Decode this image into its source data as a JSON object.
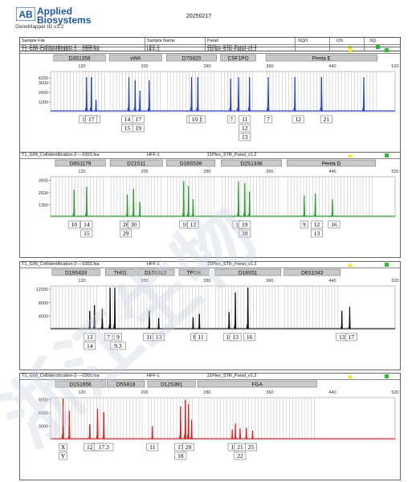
{
  "header": {
    "logo_mark": "AB",
    "brand_line1": "Applied",
    "brand_line2": "Biosystems",
    "software": "GeneMapper ID v3.2",
    "date": "20250217",
    "columns": [
      "Sample File",
      "Sample Name",
      "Panel",
      "SQO",
      "OS",
      "SQ"
    ],
    "row": {
      "sample_file": "T1_G09_CellIdentification-2----0303.fsa",
      "sample_name": "HFF-1",
      "panel": "21Plex_STR_Panel_v1.2"
    },
    "colors": {
      "os_flag": "#ffe100",
      "sq_flag": "#22c42a"
    }
  },
  "watermark": "浙江生物",
  "chart_data": [
    {
      "type": "line",
      "dye": "blue",
      "color": "#1f3fd6",
      "title_row": {
        "sample_file": "T1_G09_CellIdentification-2----0303.fsa",
        "sample_name": "HFF-1",
        "panel": "21Plex_STR_Panel_v1.2"
      },
      "xlim": [
        80,
        520
      ],
      "x_ticks": [
        120,
        200,
        280,
        360,
        440,
        520
      ],
      "ylim": [
        0,
        5000
      ],
      "y_ticks": [
        1200,
        2400,
        3600,
        4200
      ],
      "loci": [
        {
          "name": "D3S1358",
          "start": 84,
          "end": 150
        },
        {
          "name": "vWA",
          "start": 155,
          "end": 222
        },
        {
          "name": "D7S820",
          "start": 228,
          "end": 292
        },
        {
          "name": "CSF1PO",
          "start": 297,
          "end": 342
        },
        {
          "name": "Penta E",
          "start": 355,
          "end": 497
        }
      ],
      "peaks": [
        [
          126,
          4300
        ],
        [
          132,
          4300
        ],
        [
          138,
          1500
        ],
        [
          180,
          4300
        ],
        [
          188,
          3900
        ],
        [
          194,
          2600
        ],
        [
          206,
          3900
        ],
        [
          260,
          4300
        ],
        [
          268,
          4300
        ],
        [
          310,
          4100
        ],
        [
          320,
          4300
        ],
        [
          334,
          4300
        ],
        [
          358,
          4300
        ],
        [
          392,
          4300
        ],
        [
          426,
          4300
        ],
        [
          480,
          4300
        ]
      ],
      "alleles": [
        {
          "x": 124,
          "labels": [
            "15"
          ]
        },
        {
          "x": 136,
          "labels": [
            "18"
          ]
        },
        {
          "x": 132,
          "labels": [
            "17"
          ]
        },
        {
          "x": 178,
          "labels": [
            "14",
            "15"
          ]
        },
        {
          "x": 192,
          "labels": [
            "17",
            "19"
          ]
        },
        {
          "x": 259,
          "labels": [
            "9"
          ]
        },
        {
          "x": 270,
          "labels": [
            "12"
          ]
        },
        {
          "x": 264,
          "labels": [
            "10"
          ]
        },
        {
          "x": 311,
          "labels": [
            "7"
          ]
        },
        {
          "x": 328,
          "labels": [
            "11",
            "12",
            "13"
          ]
        },
        {
          "x": 358,
          "labels": [
            "7"
          ]
        },
        {
          "x": 396,
          "labels": [
            "12"
          ]
        },
        {
          "x": 432,
          "labels": [
            "21"
          ]
        }
      ]
    },
    {
      "type": "line",
      "dye": "green",
      "color": "#26a52a",
      "title_row": {
        "sample_file": "T1_G09_CellIdentification-2----0303.fsa",
        "sample_name": "HFF-1",
        "panel": "21Plex_STR_Panel_v1.2"
      },
      "xlim": [
        80,
        520
      ],
      "x_ticks": [
        120,
        200,
        280,
        360,
        440,
        520
      ],
      "ylim": [
        0,
        4300
      ],
      "y_ticks": [
        1300,
        2600,
        3900
      ],
      "loci": [
        {
          "name": "D8S1179",
          "start": 86,
          "end": 150
        },
        {
          "name": "D21S11",
          "start": 156,
          "end": 223
        },
        {
          "name": "D16S539",
          "start": 228,
          "end": 290
        },
        {
          "name": "D2S1338",
          "start": 298,
          "end": 375
        },
        {
          "name": "Penta D",
          "start": 382,
          "end": 495
        }
      ],
      "peaks": [
        [
          110,
          2900
        ],
        [
          126,
          3200
        ],
        [
          178,
          2400
        ],
        [
          186,
          3000
        ],
        [
          194,
          1600
        ],
        [
          250,
          3800
        ],
        [
          256,
          3300
        ],
        [
          262,
          1900
        ],
        [
          320,
          3800
        ],
        [
          328,
          3600
        ],
        [
          334,
          2700
        ],
        [
          404,
          2300
        ],
        [
          418,
          2500
        ],
        [
          440,
          1900
        ]
      ],
      "alleles": [
        {
          "x": 110,
          "labels": [
            "10"
          ]
        },
        {
          "x": 126,
          "labels": [
            "14",
            "15"
          ]
        },
        {
          "x": 176,
          "labels": [
            "28",
            "29"
          ]
        },
        {
          "x": 186,
          "labels": [
            "30"
          ]
        },
        {
          "x": 252,
          "labels": [
            "10"
          ]
        },
        {
          "x": 262,
          "labels": [
            "12"
          ]
        },
        {
          "x": 320,
          "labels": [
            "17"
          ]
        },
        {
          "x": 328,
          "labels": [
            "19",
            "20"
          ]
        },
        {
          "x": 404,
          "labels": [
            "9"
          ]
        },
        {
          "x": 420,
          "labels": [
            "12",
            "13"
          ]
        },
        {
          "x": 442,
          "labels": [
            "16"
          ]
        }
      ]
    },
    {
      "type": "line",
      "dye": "black",
      "color": "#111111",
      "title_row": {
        "sample_file": "T1_G09_CellIdentification-2----0303.fsa",
        "sample_name": "HFF-1",
        "panel": "21Plex_STR_Panel_v1.2"
      },
      "xlim": [
        80,
        520
      ],
      "x_ticks": [
        120,
        200,
        280,
        360,
        440,
        520
      ],
      "ylim": [
        0,
        13000
      ],
      "y_ticks": [
        4000,
        8000,
        12000
      ],
      "loci": [
        {
          "name": "D19S433",
          "start": 82,
          "end": 143
        },
        {
          "name": "TH01",
          "start": 150,
          "end": 188
        },
        {
          "name": "D13S317",
          "start": 190,
          "end": 238
        },
        {
          "name": "TPOX",
          "start": 244,
          "end": 282
        },
        {
          "name": "D18S51",
          "start": 290,
          "end": 374
        },
        {
          "name": "D6S1043",
          "start": 378,
          "end": 450
        }
      ],
      "peaks": [
        [
          130,
          5500
        ],
        [
          136,
          7200
        ],
        [
          146,
          6200
        ],
        [
          156,
          12500
        ],
        [
          162,
          12500
        ],
        [
          206,
          5600
        ],
        [
          218,
          3400
        ],
        [
          262,
          3600
        ],
        [
          270,
          4600
        ],
        [
          308,
          5200
        ],
        [
          316,
          11000
        ],
        [
          332,
          12500
        ],
        [
          452,
          5600
        ],
        [
          462,
          6800
        ]
      ],
      "alleles": [
        {
          "x": 130,
          "labels": [
            "13",
            "14"
          ]
        },
        {
          "x": 154,
          "labels": [
            "7"
          ]
        },
        {
          "x": 166,
          "labels": [
            "9",
            "9.3"
          ]
        },
        {
          "x": 206,
          "labels": [
            "11"
          ]
        },
        {
          "x": 218,
          "labels": [
            "13"
          ]
        },
        {
          "x": 264,
          "labels": [
            "8"
          ]
        },
        {
          "x": 272,
          "labels": [
            "11"
          ]
        },
        {
          "x": 308,
          "labels": [
            "10"
          ]
        },
        {
          "x": 316,
          "labels": [
            "13"
          ]
        },
        {
          "x": 334,
          "labels": [
            "16"
          ]
        },
        {
          "x": 452,
          "labels": [
            "13"
          ]
        },
        {
          "x": 464,
          "labels": [
            "17"
          ]
        }
      ]
    },
    {
      "type": "line",
      "dye": "red",
      "color": "#e0201c",
      "title_row": {
        "sample_file": "T1_G09_CellIdentification-2----0303.fsa",
        "sample_name": "HFF-1",
        "panel": "21Plex_STR_Panel_v1.2"
      },
      "xlim": [
        80,
        520
      ],
      "x_ticks": [
        120,
        200,
        280,
        360,
        440,
        520
      ],
      "ylim": [
        0,
        9500
      ],
      "y_ticks": [
        3000,
        6000,
        9000
      ],
      "loci": [
        {
          "name": "D1S1656",
          "start": 86,
          "end": 150
        },
        {
          "name": "D5S818",
          "start": 152,
          "end": 200
        },
        {
          "name": "D12S391",
          "start": 204,
          "end": 265
        },
        {
          "name": "FGA",
          "start": 268,
          "end": 420
        }
      ],
      "peaks": [
        [
          96,
          9300
        ],
        [
          104,
          6500
        ],
        [
          130,
          3400
        ],
        [
          140,
          7000
        ],
        [
          148,
          6200
        ],
        [
          210,
          3000
        ],
        [
          246,
          7500
        ],
        [
          252,
          9000
        ],
        [
          256,
          8000
        ],
        [
          260,
          4500
        ],
        [
          312,
          2200
        ],
        [
          316,
          3600
        ],
        [
          322,
          2500
        ],
        [
          330,
          2600
        ],
        [
          338,
          2000
        ]
      ],
      "alleles": [
        {
          "x": 96,
          "labels": [
            "X",
            "Y"
          ]
        },
        {
          "x": 130,
          "labels": [
            "12"
          ]
        },
        {
          "x": 140,
          "labels": [
            "16"
          ]
        },
        {
          "x": 148,
          "labels": [
            "17.3"
          ]
        },
        {
          "x": 210,
          "labels": [
            "11"
          ]
        },
        {
          "x": 246,
          "labels": [
            "17",
            "18"
          ]
        },
        {
          "x": 256,
          "labels": [
            "20"
          ]
        },
        {
          "x": 314,
          "labels": [
            "19"
          ]
        },
        {
          "x": 322,
          "labels": [
            "21",
            "22"
          ]
        },
        {
          "x": 336,
          "labels": [
            "25"
          ]
        }
      ]
    }
  ]
}
